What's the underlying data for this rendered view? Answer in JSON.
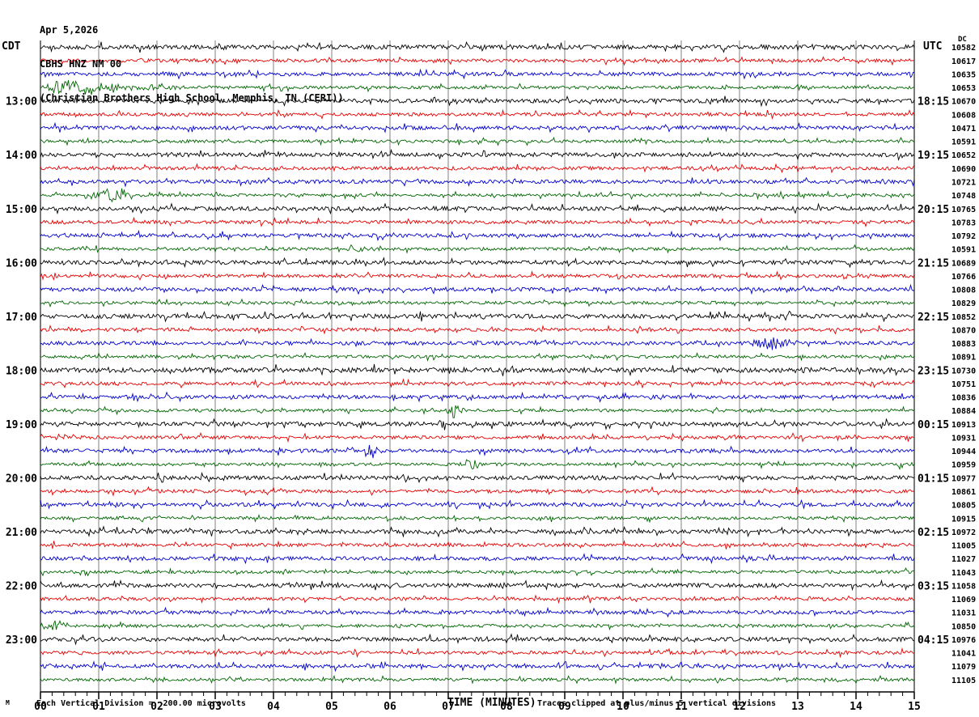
{
  "header": {
    "date": "Apr 5,2026",
    "station": "CBHS HNZ NM 00",
    "station_desc": "(Christian Brothers High School, Memphis, TN (CERI))"
  },
  "axes": {
    "left_tz": "CDT",
    "right_tz": "UTC",
    "right_col_header": "DC",
    "x_ticks": [
      "00",
      "01",
      "02",
      "03",
      "04",
      "05",
      "06",
      "07",
      "08",
      "09",
      "10",
      "11",
      "12",
      "13",
      "14",
      "15"
    ]
  },
  "footer": {
    "left_glyph": "M",
    "scale_text": "Each Vertical Division =  200.00 microvolts",
    "xlabel": "TIME (MINUTES)",
    "clip_text": "Traces clipped at plus/minus 5 vertical divisions"
  },
  "chart_data": {
    "type": "line",
    "title": "CBHS HNZ NM 00 helicorder, Apr 5,2026",
    "xlabel": "TIME (MINUTES)",
    "x_range_minutes": [
      0,
      15
    ],
    "minutes_per_row": 15,
    "grid": "vertical lines every minute",
    "legend_position": "none",
    "scale_note": "Each Vertical Division = 200.00 microvolts",
    "clip_note": "Traces clipped at plus/minus 5 vertical divisions",
    "trace_colors_cycle": [
      "#000000",
      "#e60000",
      "#0000cc",
      "#006600"
    ],
    "grid_color": "#808080",
    "amp_by_color": [
      2.5,
      2.1,
      2.3,
      1.9
    ],
    "rows": [
      {
        "dc": 10582,
        "amp": 2.7
      },
      {
        "dc": 10617
      },
      {
        "dc": 10635
      },
      {
        "dc": 10653,
        "ev": [
          [
            5,
            60,
            9
          ],
          [
            60,
            90,
            4
          ]
        ]
      },
      {
        "dc": 10670,
        "cdt": "13:00",
        "utc": "18:15"
      },
      {
        "dc": 10608
      },
      {
        "dc": 10471
      },
      {
        "dc": 10591
      },
      {
        "dc": 10652,
        "cdt": "14:00",
        "utc": "19:15"
      },
      {
        "dc": 10690
      },
      {
        "dc": 10721
      },
      {
        "dc": 10748,
        "ev": [
          [
            75,
            35,
            8
          ]
        ]
      },
      {
        "dc": 10765,
        "cdt": "15:00",
        "utc": "20:15"
      },
      {
        "dc": 10783
      },
      {
        "dc": 10792
      },
      {
        "dc": 10591,
        "ev": [
          [
            368,
            30,
            4
          ]
        ]
      },
      {
        "dc": 10689,
        "cdt": "16:00",
        "utc": "21:15"
      },
      {
        "dc": 10766
      },
      {
        "dc": 10808
      },
      {
        "dc": 10829
      },
      {
        "dc": 10852,
        "cdt": "17:00",
        "utc": "22:15",
        "amp": 2.7
      },
      {
        "dc": 10870
      },
      {
        "dc": 10883,
        "ev": [
          [
            888,
            34,
            9
          ]
        ]
      },
      {
        "dc": 10891
      },
      {
        "dc": 10730,
        "cdt": "18:00",
        "utc": "23:15",
        "amp": 3.0
      },
      {
        "dc": 10751
      },
      {
        "dc": 10836,
        "ev": [
          [
            108,
            10,
            6
          ]
        ]
      },
      {
        "dc": 10884,
        "ev": [
          [
            505,
            14,
            9
          ]
        ]
      },
      {
        "dc": 10913,
        "cdt": "19:00",
        "utc": "00:15",
        "ev": [
          [
            388,
            6,
            5
          ],
          [
            492,
            9,
            9
          ]
        ]
      },
      {
        "dc": 10931
      },
      {
        "dc": 10944,
        "ev": [
          [
            403,
            12,
            11
          ]
        ]
      },
      {
        "dc": 10959,
        "ev": [
          [
            526,
            18,
            8
          ],
          [
            1058,
            12,
            6
          ]
        ]
      },
      {
        "dc": 10977,
        "cdt": "20:00",
        "utc": "01:15"
      },
      {
        "dc": 10861
      },
      {
        "dc": 10805
      },
      {
        "dc": 10915
      },
      {
        "dc": 10972,
        "cdt": "21:00",
        "utc": "02:15",
        "ev": [
          [
            843,
            8,
            7
          ]
        ]
      },
      {
        "dc": 11005
      },
      {
        "dc": 11027
      },
      {
        "dc": 11043
      },
      {
        "dc": 11058,
        "cdt": "22:00",
        "utc": "03:15"
      },
      {
        "dc": 11069
      },
      {
        "dc": 11031
      },
      {
        "dc": 10850,
        "ev": [
          [
            6,
            22,
            8
          ]
        ]
      },
      {
        "dc": 10976,
        "cdt": "23:00",
        "utc": "04:15"
      },
      {
        "dc": 11041
      },
      {
        "dc": 11079
      },
      {
        "dc": 11105
      }
    ]
  }
}
